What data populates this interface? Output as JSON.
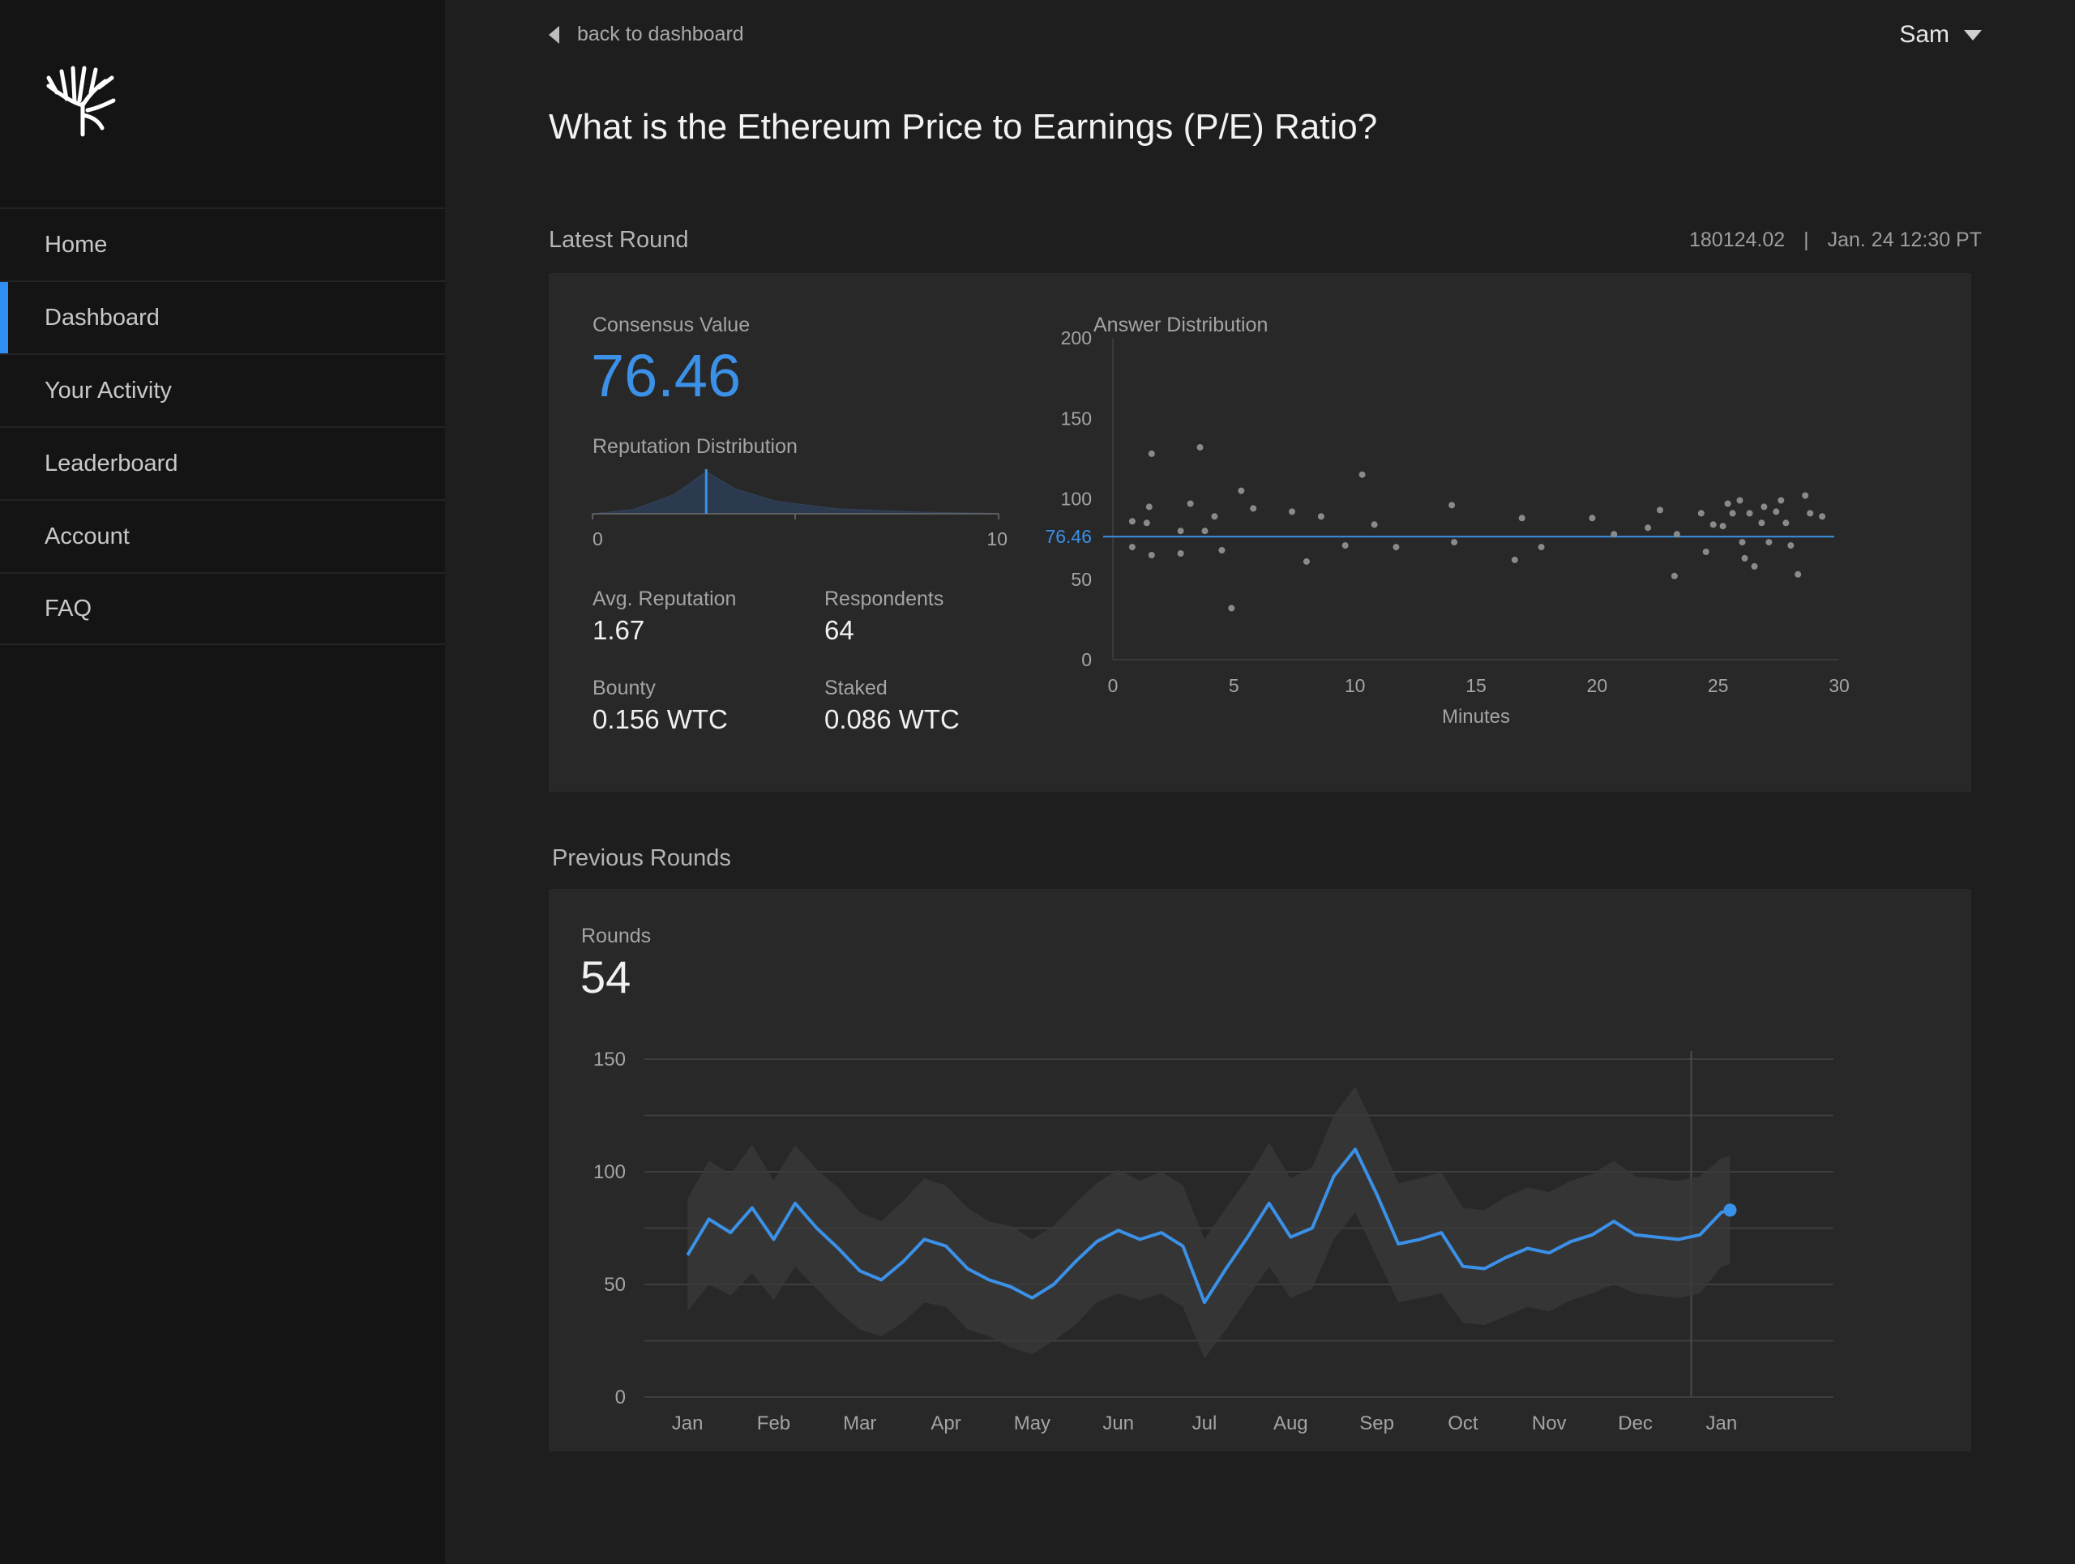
{
  "sidebar": {
    "logo": "hand-tree-logo",
    "items": [
      {
        "label": "Home",
        "active": false
      },
      {
        "label": "Dashboard",
        "active": true
      },
      {
        "label": "Your Activity",
        "active": false
      },
      {
        "label": "Leaderboard",
        "active": false
      },
      {
        "label": "Account",
        "active": false
      },
      {
        "label": "FAQ",
        "active": false
      }
    ]
  },
  "header": {
    "back_label": "back to dashboard",
    "user_name": "Sam",
    "title": "What is the Ethereum Price to Earnings (P/E) Ratio?"
  },
  "latest_round": {
    "section_label": "Latest Round",
    "round_id": "180124.02",
    "separator": "|",
    "date": "Jan. 24 12:30 PT",
    "consensus_label": "Consensus Value",
    "consensus_value": "76.46",
    "reputation_dist_label": "Reputation Distribution",
    "rep_axis_min": "0",
    "rep_axis_max": "10",
    "avg_reputation_label": "Avg. Reputation",
    "avg_reputation": "1.67",
    "respondents_label": "Respondents",
    "respondents": "64",
    "bounty_label": "Bounty",
    "bounty": "0.156 WTC",
    "staked_label": "Staked",
    "staked": "0.086 WTC",
    "answer_dist_label": "Answer Distribution"
  },
  "previous_rounds": {
    "section_label": "Previous Rounds",
    "rounds_label": "Rounds",
    "rounds_count": "54"
  },
  "colors": {
    "accent": "#3b91e8",
    "panel": "#282829",
    "background": "#1e1e1f",
    "sidebar": "#141414"
  },
  "chart_data": [
    {
      "type": "area",
      "name": "reputation-distribution",
      "x": [
        0,
        1,
        2,
        2.8,
        3.5,
        4.5,
        6,
        8,
        10
      ],
      "values": [
        0,
        0.1,
        0.45,
        1.0,
        0.6,
        0.3,
        0.12,
        0.04,
        0.01
      ],
      "marker_x": 2.8,
      "xlim": [
        0,
        10
      ],
      "xticks": [
        "0",
        "10"
      ]
    },
    {
      "type": "scatter",
      "title": "Answer Distribution",
      "xlabel": "Minutes",
      "ylabel": "",
      "xlim": [
        0,
        30
      ],
      "ylim": [
        0,
        200
      ],
      "xticks": [
        "0",
        "5",
        "10",
        "15",
        "20",
        "25",
        "30"
      ],
      "yticks": [
        "0",
        "50",
        "100",
        "150",
        "200"
      ],
      "consensus": 76.46,
      "consensus_label": "76.46",
      "points": [
        [
          0.8,
          86
        ],
        [
          0.8,
          70
        ],
        [
          1.4,
          85
        ],
        [
          1.5,
          95
        ],
        [
          1.6,
          128
        ],
        [
          1.6,
          65
        ],
        [
          2.8,
          80
        ],
        [
          2.8,
          66
        ],
        [
          3.2,
          97
        ],
        [
          3.6,
          132
        ],
        [
          3.8,
          80
        ],
        [
          4.2,
          89
        ],
        [
          4.5,
          68
        ],
        [
          4.9,
          32
        ],
        [
          5.3,
          105
        ],
        [
          5.8,
          94
        ],
        [
          7.4,
          92
        ],
        [
          8.0,
          61
        ],
        [
          8.6,
          89
        ],
        [
          9.6,
          71
        ],
        [
          10.3,
          115
        ],
        [
          10.8,
          84
        ],
        [
          11.7,
          70
        ],
        [
          14.0,
          96
        ],
        [
          14.1,
          73
        ],
        [
          16.6,
          62
        ],
        [
          16.9,
          88
        ],
        [
          17.7,
          70
        ],
        [
          19.8,
          88
        ],
        [
          20.7,
          78
        ],
        [
          22.1,
          82
        ],
        [
          22.6,
          93
        ],
        [
          23.2,
          52
        ],
        [
          23.3,
          78
        ],
        [
          24.3,
          91
        ],
        [
          24.5,
          67
        ],
        [
          24.8,
          84
        ],
        [
          25.2,
          83
        ],
        [
          25.4,
          97
        ],
        [
          25.6,
          91
        ],
        [
          25.9,
          99
        ],
        [
          26.0,
          73
        ],
        [
          26.1,
          63
        ],
        [
          26.3,
          91
        ],
        [
          26.5,
          58
        ],
        [
          26.8,
          85
        ],
        [
          26.9,
          95
        ],
        [
          27.1,
          73
        ],
        [
          27.4,
          92
        ],
        [
          27.6,
          99
        ],
        [
          27.8,
          85
        ],
        [
          28.0,
          71
        ],
        [
          28.3,
          53
        ],
        [
          28.6,
          102
        ],
        [
          28.8,
          91
        ],
        [
          29.3,
          89
        ]
      ]
    },
    {
      "type": "line",
      "name": "previous-rounds",
      "categories": [
        "Jan",
        "Feb",
        "Mar",
        "Apr",
        "May",
        "Jun",
        "Jul",
        "Aug",
        "Sep",
        "Oct",
        "Nov",
        "Dec",
        "Jan"
      ],
      "ylim": [
        0,
        150
      ],
      "yticks": [
        "0",
        "50",
        "100",
        "150"
      ],
      "x": [
        0,
        0.25,
        0.5,
        0.75,
        1,
        1.25,
        1.5,
        1.75,
        2,
        2.25,
        2.5,
        2.75,
        3,
        3.25,
        3.5,
        3.75,
        4,
        4.25,
        4.5,
        4.75,
        5,
        5.25,
        5.5,
        5.75,
        6,
        6.25,
        6.5,
        6.75,
        7,
        7.25,
        7.5,
        7.75,
        8,
        8.25,
        8.5,
        8.75,
        9,
        9.25,
        9.5,
        9.75,
        10,
        10.25,
        10.5,
        10.75,
        11,
        11.25,
        11.5,
        11.75,
        12,
        12.1
      ],
      "series": [
        {
          "values": [
            63,
            79,
            73,
            84,
            70,
            86,
            75,
            66,
            56,
            52,
            60,
            70,
            67,
            57,
            52,
            49,
            44,
            50,
            60,
            69,
            74,
            70,
            73,
            67,
            42,
            57,
            71,
            86,
            71,
            75,
            98,
            110,
            90,
            68,
            70,
            73,
            58,
            57,
            62,
            66,
            64,
            69,
            72,
            78,
            72,
            71,
            70,
            72,
            82,
            83
          ],
          "lower": [
            38,
            50,
            45,
            55,
            43,
            58,
            48,
            38,
            30,
            27,
            33,
            42,
            40,
            30,
            27,
            22,
            19,
            25,
            32,
            42,
            46,
            43,
            46,
            40,
            17,
            30,
            44,
            58,
            44,
            48,
            70,
            82,
            62,
            42,
            44,
            46,
            33,
            32,
            36,
            40,
            38,
            43,
            46,
            50,
            46,
            45,
            44,
            46,
            58,
            59
          ],
          "upper": [
            88,
            105,
            99,
            112,
            96,
            112,
            101,
            93,
            82,
            78,
            87,
            97,
            94,
            84,
            78,
            76,
            70,
            76,
            86,
            95,
            101,
            96,
            100,
            94,
            70,
            84,
            97,
            113,
            97,
            102,
            125,
            138,
            117,
            95,
            97,
            100,
            84,
            83,
            89,
            93,
            91,
            96,
            99,
            105,
            98,
            97,
            96,
            98,
            106,
            107
          ]
        }
      ]
    }
  ]
}
